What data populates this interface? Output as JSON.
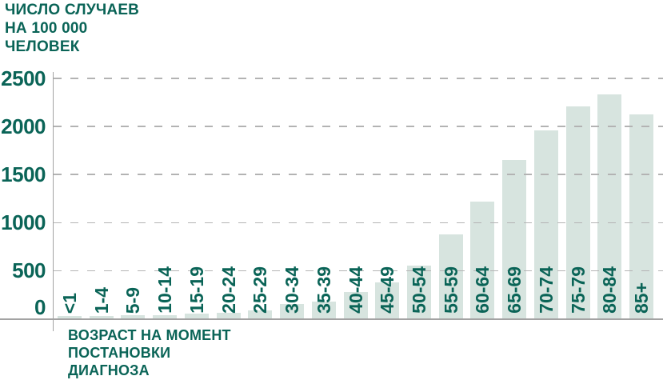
{
  "chart_data": {
    "type": "bar",
    "title": "ЧИСЛО СЛУЧАЕВ НА 100 000 ЧЕЛОВЕК",
    "title_lines": "ЧИСЛО СЛУЧАЕВ\nНА 100 000\nЧЕЛОВЕК",
    "xlabel": "ВОЗРАСТ НА МОМЕНТ ПОСТАНОВКИ ДИАГНОЗА",
    "xlabel_lines": "ВОЗРАСТ НА МОМЕНТ\nПОСТАНОВКИ\nДИАГНОЗА",
    "ylabel": "ЧИСЛО СЛУЧАЕВ НА 100 000 ЧЕЛОВЕК",
    "categories": [
      "<1",
      "1-4",
      "5-9",
      "10-14",
      "15-19",
      "20-24",
      "25-29",
      "30-34",
      "35-39",
      "40-44",
      "45-49",
      "50-54",
      "55-59",
      "60-64",
      "65-69",
      "70-74",
      "75-79",
      "80-84",
      "85+"
    ],
    "values": [
      25,
      30,
      35,
      40,
      50,
      65,
      90,
      150,
      180,
      280,
      380,
      555,
      875,
      1215,
      1655,
      1960,
      2210,
      2330,
      2125
    ],
    "yticks": [
      0,
      500,
      1000,
      1500,
      2000,
      2500
    ],
    "ylim": [
      0,
      2500
    ],
    "grid": "horizontal-dashed",
    "legend_position": "none",
    "x_tick_rotation_deg": 90,
    "colors": {
      "bar": "#D7E4DF",
      "text": "#0A6457",
      "gridline": "#B3B3B3",
      "axis": "#A3A3A3",
      "background": "#FFFFFF"
    }
  }
}
